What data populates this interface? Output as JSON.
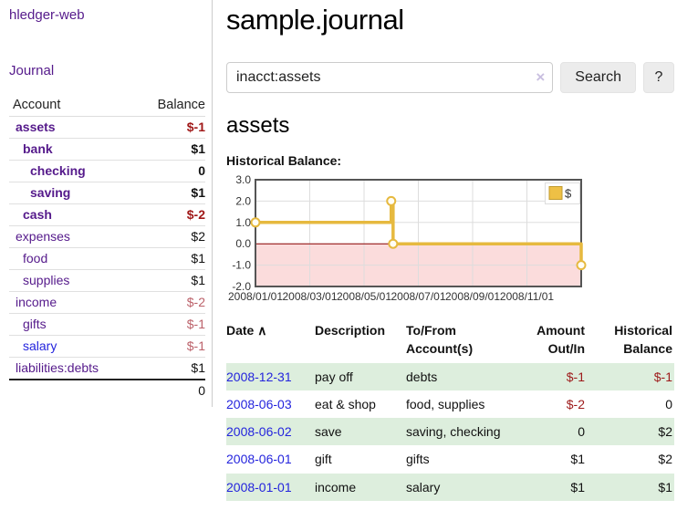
{
  "app": {
    "title": "hledger-web"
  },
  "sidebar": {
    "journal_label": "Journal",
    "accounts_header": {
      "account": "Account",
      "balance": "Balance"
    },
    "accounts": [
      {
        "name": "assets",
        "balance": "$-1",
        "indent": 1,
        "emph": true,
        "link_tone": "purple",
        "balance_tone": "neg-strong"
      },
      {
        "name": "bank",
        "balance": "$1",
        "indent": 2,
        "emph": true,
        "link_tone": "purple",
        "balance_tone": "pos"
      },
      {
        "name": "checking",
        "balance": "0",
        "indent": 3,
        "emph": true,
        "link_tone": "purple",
        "balance_tone": "pos"
      },
      {
        "name": "saving",
        "balance": "$1",
        "indent": 3,
        "emph": true,
        "link_tone": "purple",
        "balance_tone": "pos"
      },
      {
        "name": "cash",
        "balance": "$-2",
        "indent": 2,
        "emph": true,
        "link_tone": "purple",
        "balance_tone": "neg-strong"
      },
      {
        "name": "expenses",
        "balance": "$2",
        "indent": 1,
        "emph": false,
        "link_tone": "purple",
        "balance_tone": "pos"
      },
      {
        "name": "food",
        "balance": "$1",
        "indent": 2,
        "emph": false,
        "link_tone": "purple",
        "balance_tone": "pos"
      },
      {
        "name": "supplies",
        "balance": "$1",
        "indent": 2,
        "emph": false,
        "link_tone": "purple",
        "balance_tone": "pos"
      },
      {
        "name": "income",
        "balance": "$-2",
        "indent": 1,
        "emph": false,
        "link_tone": "purple",
        "balance_tone": "neg-soft"
      },
      {
        "name": "gifts",
        "balance": "$-1",
        "indent": 2,
        "emph": false,
        "link_tone": "purple",
        "balance_tone": "neg-soft"
      },
      {
        "name": "salary",
        "balance": "$-1",
        "indent": 2,
        "emph": false,
        "link_tone": "blue",
        "balance_tone": "neg-soft"
      },
      {
        "name": "liabilities:debts",
        "balance": "$1",
        "indent": 1,
        "emph": false,
        "link_tone": "purple",
        "balance_tone": "pos"
      }
    ],
    "total": "0"
  },
  "main": {
    "title": "sample.journal",
    "search": {
      "value": "inacct:assets",
      "clear_icon": "×",
      "button_label": "Search",
      "help_label": "?"
    },
    "account_heading": "assets"
  },
  "chart_data": {
    "type": "line",
    "step": true,
    "title": "Historical Balance:",
    "ylim": [
      -2,
      3
    ],
    "yticks": [
      "3.0",
      "2.0",
      "1.0",
      "0.0",
      "-1.0",
      "-2.0"
    ],
    "xticks": [
      {
        "label": "2008/01/01",
        "m": 0
      },
      {
        "label": "2008/03/01",
        "m": 2
      },
      {
        "label": "2008/05/01",
        "m": 4
      },
      {
        "label": "2008/07/01",
        "m": 6
      },
      {
        "label": "2008/09/01",
        "m": 8
      },
      {
        "label": "2008/11/01",
        "m": 10
      }
    ],
    "xlim_months": [
      0,
      12
    ],
    "grid": true,
    "legend": {
      "label": "$",
      "position": "top-right"
    },
    "series": [
      {
        "name": "$",
        "points": [
          {
            "date": "2008-01-01",
            "m": 0,
            "value": 1
          },
          {
            "date": "2008-06-01",
            "m": 5,
            "value": 2
          },
          {
            "date": "2008-06-03",
            "m": 5.07,
            "value": 0
          },
          {
            "date": "2008-12-31",
            "m": 12,
            "value": -1
          }
        ]
      }
    ],
    "colors": {
      "line": "#e6b93f",
      "marker_fill": "#fffdf5",
      "legend_swatch": "#eec045",
      "legend_swatch_border": "#c19b2e",
      "negative_fill": "#fbdcdc",
      "zero_line": "#8f0000",
      "grid": "#dddddd",
      "frame": "#555555",
      "tick_text": "#333333"
    }
  },
  "register": {
    "sort_indicator": "∧",
    "headers": [
      "Date",
      "Description",
      "To/From Account(s)",
      "Amount Out/In",
      "Historical Balance"
    ],
    "rows": [
      {
        "date": "2008-12-31",
        "description": "pay off",
        "accounts": "debts",
        "amount": "$-1",
        "amount_tone": "neg",
        "balance": "$-1",
        "balance_tone": "neg"
      },
      {
        "date": "2008-06-03",
        "description": "eat & shop",
        "accounts": "food, supplies",
        "amount": "$-2",
        "amount_tone": "neg",
        "balance": "0",
        "balance_tone": "pos"
      },
      {
        "date": "2008-06-02",
        "description": "save",
        "accounts": "saving, checking",
        "amount": "0",
        "amount_tone": "pos",
        "balance": "$2",
        "balance_tone": "pos"
      },
      {
        "date": "2008-06-01",
        "description": "gift",
        "accounts": "gifts",
        "amount": "$1",
        "amount_tone": "pos",
        "balance": "$2",
        "balance_tone": "pos"
      },
      {
        "date": "2008-01-01",
        "description": "income",
        "accounts": "salary",
        "amount": "$1",
        "amount_tone": "pos",
        "balance": "$1",
        "balance_tone": "pos"
      }
    ]
  }
}
